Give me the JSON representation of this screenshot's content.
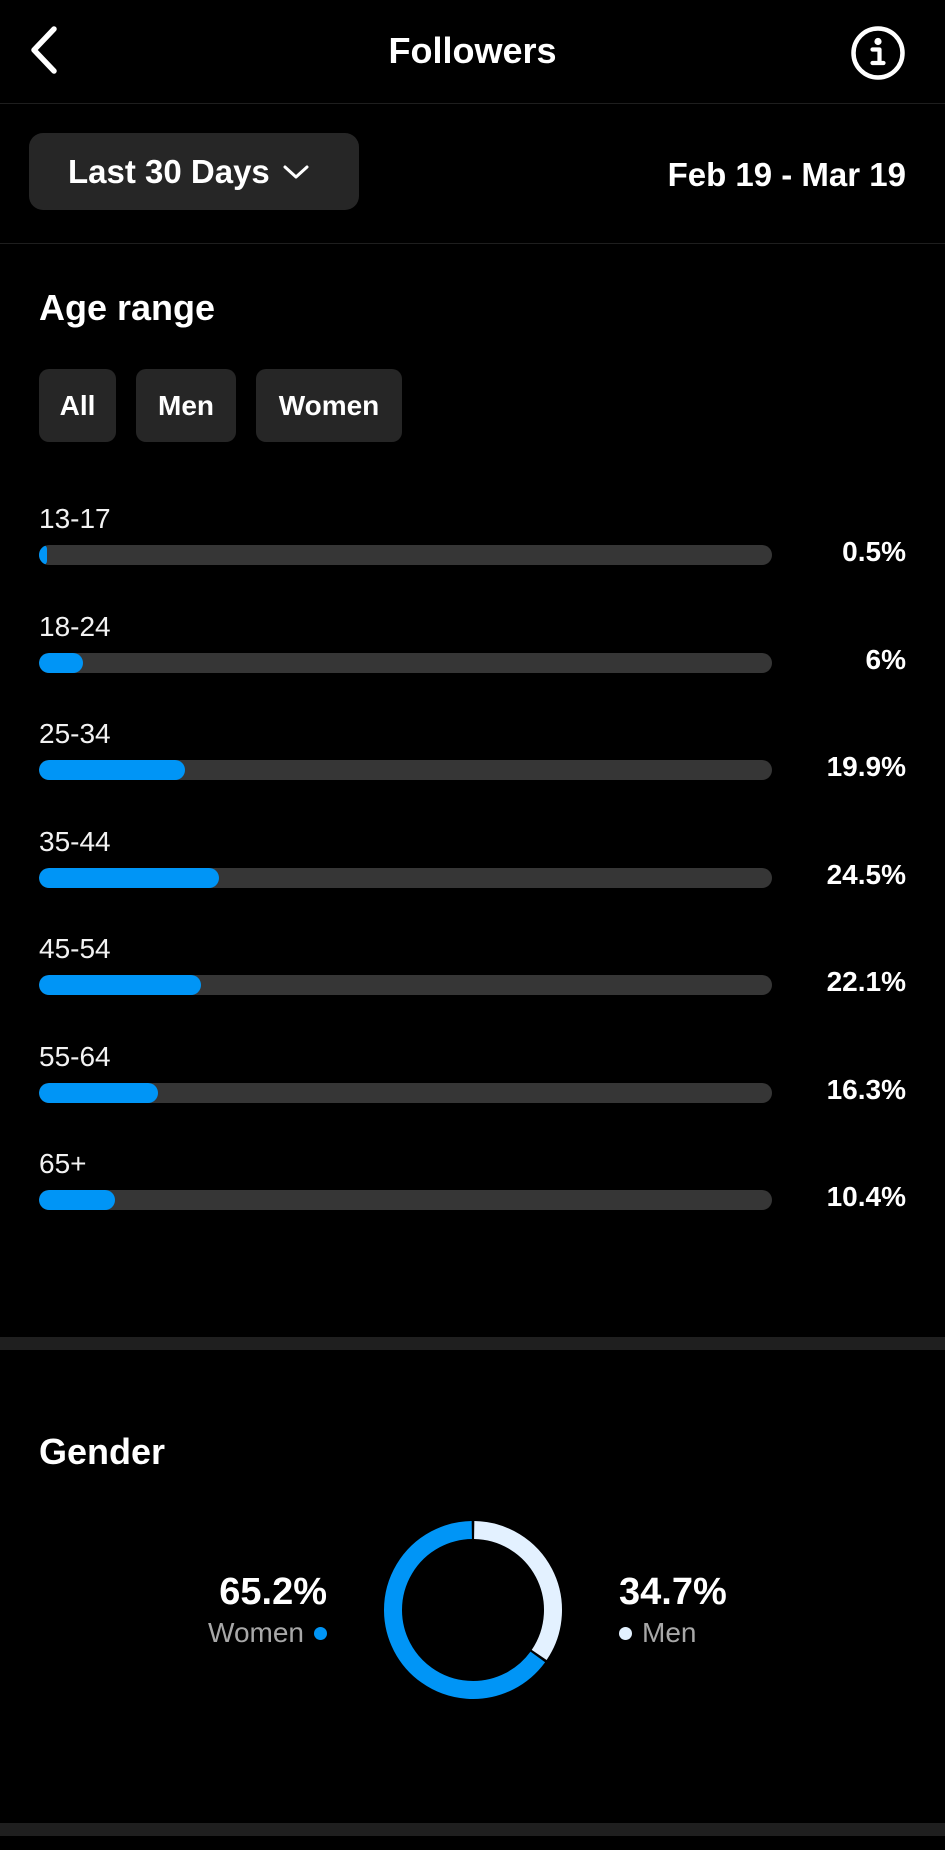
{
  "header": {
    "title": "Followers"
  },
  "range": {
    "selected": "Last 30 Days",
    "dates": "Feb 19 - Mar 19"
  },
  "age": {
    "title": "Age range",
    "filters": [
      {
        "label": "All",
        "active": true
      },
      {
        "label": "Men",
        "active": false
      },
      {
        "label": "Women",
        "active": false
      }
    ]
  },
  "gender": {
    "title": "Gender",
    "women": {
      "pct": "65.2%",
      "label": "Women"
    },
    "men": {
      "pct": "34.7%",
      "label": "Men"
    }
  },
  "colors": {
    "accent": "#0095f6",
    "men": "#e3f1ff",
    "track": "#363636"
  },
  "chart_data": [
    {
      "type": "bar",
      "orientation": "horizontal",
      "title": "Age range",
      "categories": [
        "13-17",
        "18-24",
        "25-34",
        "35-44",
        "45-54",
        "55-64",
        "65+"
      ],
      "values": [
        0.5,
        6,
        19.9,
        24.5,
        22.1,
        16.3,
        10.4
      ],
      "labels": [
        "0.5%",
        "6%",
        "19.9%",
        "24.5%",
        "22.1%",
        "16.3%",
        "10.4%"
      ],
      "xlim": [
        0,
        100
      ]
    },
    {
      "type": "pie",
      "title": "Gender",
      "categories": [
        "Women",
        "Men"
      ],
      "values": [
        65.2,
        34.7
      ],
      "labels": [
        "65.2%",
        "34.7%"
      ]
    }
  ]
}
